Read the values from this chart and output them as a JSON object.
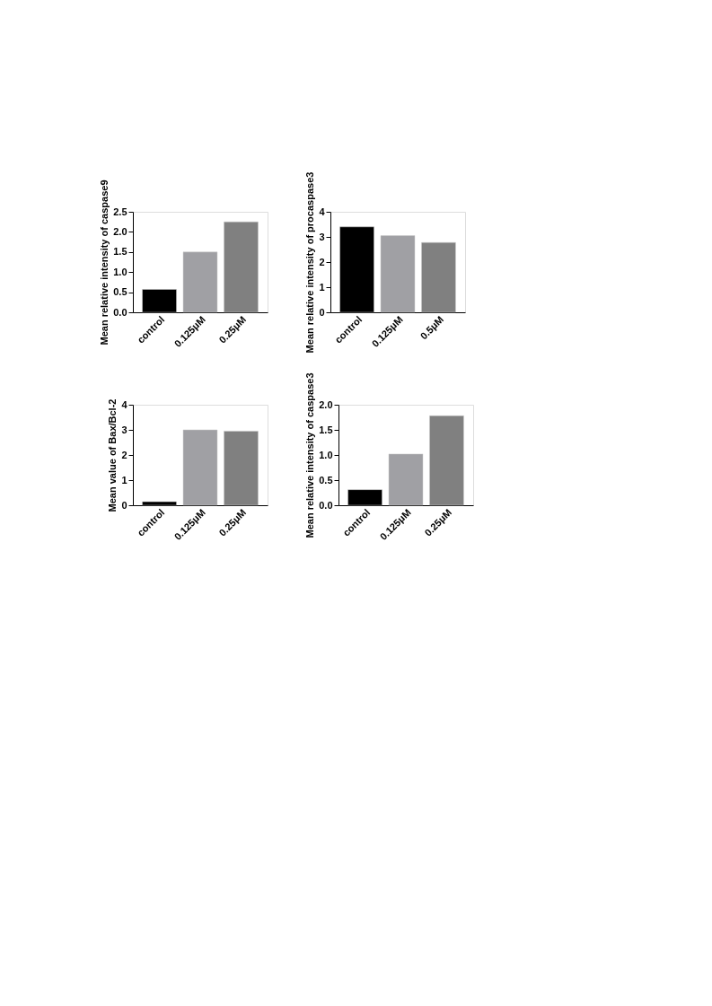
{
  "chart_data": [
    {
      "type": "bar",
      "ylabel": "Mean relative intensity of caspase9",
      "categories": [
        "control",
        "0.125μM",
        "0.25μM"
      ],
      "values": [
        0.57,
        1.5,
        2.25
      ],
      "colors": [
        "#000000",
        "#a0a0a4",
        "#808080"
      ],
      "ylim": [
        0,
        2.5
      ],
      "yticks": [
        {
          "value": 0,
          "label": "0.0"
        },
        {
          "value": 0.5,
          "label": "0.5"
        },
        {
          "value": 1,
          "label": "1.0"
        },
        {
          "value": 1.5,
          "label": "1.5"
        },
        {
          "value": 2,
          "label": "2.0"
        },
        {
          "value": 2.5,
          "label": "2.5"
        }
      ],
      "grid": false,
      "legend": false
    },
    {
      "type": "bar",
      "ylabel": "Mean relative intensity of procaspase3",
      "categories": [
        "control",
        "0.125μM",
        "0.5μM"
      ],
      "values": [
        3.4,
        3.05,
        2.78
      ],
      "colors": [
        "#000000",
        "#a0a0a4",
        "#808080"
      ],
      "ylim": [
        0,
        4
      ],
      "yticks": [
        0,
        1,
        2,
        3,
        4
      ],
      "grid": false,
      "legend": false
    },
    {
      "type": "bar",
      "ylabel": "Mean value of Bax/Bcl-2",
      "categories": [
        "control",
        "0.125μM",
        "0.25μM"
      ],
      "values": [
        0.14,
        3.0,
        2.95
      ],
      "colors": [
        "#000000",
        "#a0a0a4",
        "#808080"
      ],
      "ylim": [
        0,
        4
      ],
      "yticks": [
        0,
        1,
        2,
        3,
        4
      ],
      "grid": false,
      "legend": false
    },
    {
      "type": "bar",
      "ylabel": "Mean relative intensity of caspase3",
      "categories": [
        "control",
        "0.125μM",
        "0.25μM"
      ],
      "values": [
        0.31,
        1.02,
        1.78
      ],
      "colors": [
        "#000000",
        "#a0a0a4",
        "#808080"
      ],
      "ylim": [
        0,
        2.0
      ],
      "yticks": [
        {
          "value": 0,
          "label": "0.0"
        },
        {
          "value": 0.5,
          "label": "0.5"
        },
        {
          "value": 1,
          "label": "1.0"
        },
        {
          "value": 1.5,
          "label": "1.5"
        },
        {
          "value": 2,
          "label": "2.0"
        }
      ],
      "grid": false,
      "legend": false
    }
  ]
}
